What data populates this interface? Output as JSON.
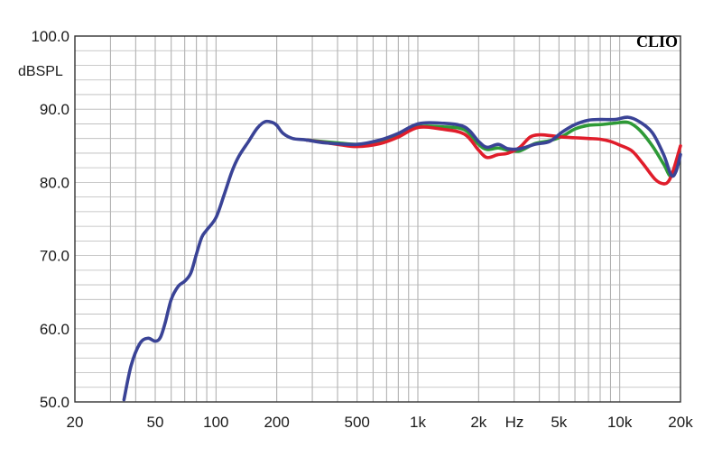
{
  "chart_data": {
    "type": "line",
    "brand": "CLIO",
    "ylabel": "dBSPL",
    "xlabel": "Hz",
    "xscale": "log",
    "xlim": [
      20,
      20000
    ],
    "ylim": [
      50,
      100
    ],
    "grid": true,
    "x_tick_labels": [
      {
        "value": 20,
        "label": "20"
      },
      {
        "value": 50,
        "label": "50"
      },
      {
        "value": 100,
        "label": "100"
      },
      {
        "value": 200,
        "label": "200"
      },
      {
        "value": 500,
        "label": "500"
      },
      {
        "value": 1000,
        "label": "1k"
      },
      {
        "value": 2000,
        "label": "2k"
      },
      {
        "value": 5000,
        "label": "5k"
      },
      {
        "value": 10000,
        "label": "10k"
      },
      {
        "value": 20000,
        "label": "20k"
      }
    ],
    "y_tick_labels": [
      {
        "value": 100,
        "label": "100.0"
      },
      {
        "value": 90,
        "label": "90.0"
      },
      {
        "value": 80,
        "label": "80.0"
      },
      {
        "value": 70,
        "label": "70.0"
      },
      {
        "value": 60,
        "label": "60.0"
      },
      {
        "value": 50,
        "label": "50.0"
      }
    ],
    "series": [
      {
        "color": "#2e9a37",
        "x": [
          280,
          400,
          500,
          650,
          800,
          1000,
          1300,
          1700,
          2000,
          2200,
          2500,
          2800,
          3200,
          3800,
          4500,
          5200,
          6000,
          7000,
          8000,
          9500,
          11000,
          12500,
          14500,
          16500,
          18000,
          19500
        ],
        "y": [
          85.8,
          85.4,
          85.2,
          85.5,
          86.3,
          87.6,
          87.6,
          87.2,
          85.2,
          84.5,
          84.7,
          84.4,
          84.3,
          85.3,
          85.7,
          86.3,
          87.3,
          87.8,
          87.9,
          88.1,
          88.2,
          87.2,
          85.0,
          82.5,
          80.8,
          82.5
        ]
      },
      {
        "color": "#e01d2b",
        "x": [
          280,
          400,
          500,
          650,
          800,
          1000,
          1300,
          1700,
          2000,
          2200,
          2500,
          2800,
          3200,
          3600,
          4000,
          4500,
          5200,
          6000,
          7000,
          8000,
          9000,
          10000,
          11500,
          13000,
          15000,
          16500,
          17500,
          18500,
          20000
        ],
        "y": [
          85.8,
          85.2,
          84.9,
          85.3,
          86.2,
          87.5,
          87.3,
          86.6,
          84.4,
          83.4,
          83.8,
          84.0,
          84.8,
          86.2,
          86.5,
          86.4,
          86.2,
          86.1,
          86.0,
          85.9,
          85.6,
          85.1,
          84.3,
          82.6,
          80.4,
          79.8,
          80.2,
          81.8,
          85.0
        ]
      },
      {
        "color": "#3a4396",
        "x": [
          35,
          38,
          42,
          46,
          50,
          53,
          56,
          60,
          65,
          70,
          75,
          80,
          85,
          90,
          100,
          110,
          120,
          130,
          145,
          160,
          175,
          190,
          200,
          215,
          240,
          280,
          350,
          500,
          650,
          800,
          1000,
          1300,
          1700,
          2000,
          2200,
          2500,
          2800,
          3200,
          3800,
          4500,
          5200,
          6000,
          7000,
          8000,
          9500,
          11000,
          12500,
          14500,
          16500,
          18000,
          19000,
          20000
        ],
        "y": [
          50.3,
          55.0,
          58.0,
          58.7,
          58.3,
          58.8,
          60.8,
          64.0,
          65.8,
          66.5,
          67.6,
          70.2,
          72.5,
          73.5,
          75.2,
          78.4,
          81.5,
          83.6,
          85.6,
          87.4,
          88.3,
          88.2,
          87.8,
          86.7,
          86.0,
          85.8,
          85.4,
          85.2,
          85.8,
          86.7,
          88.0,
          88.1,
          87.6,
          85.6,
          84.8,
          85.2,
          84.6,
          84.6,
          85.2,
          85.6,
          86.9,
          87.9,
          88.5,
          88.6,
          88.6,
          88.9,
          88.3,
          86.8,
          83.8,
          81.0,
          81.5,
          83.8
        ]
      }
    ]
  }
}
